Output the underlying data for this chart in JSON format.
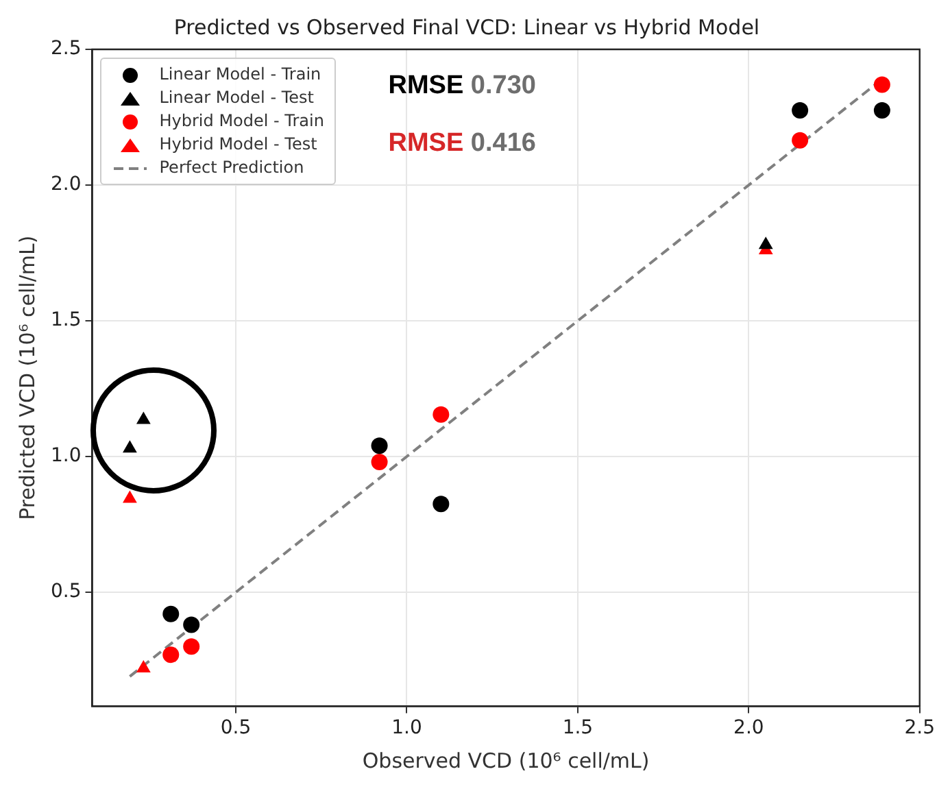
{
  "chart_data": {
    "type": "scatter",
    "title": "Predicted vs Observed Final VCD: Linear vs Hybrid Model",
    "xlabel": "Observed VCD (10⁶ cell/mL)",
    "ylabel": "Predicted VCD (10⁶ cell/mL)",
    "xlim": [
      0.08,
      2.5
    ],
    "ylim": [
      0.08,
      2.5
    ],
    "xticks": [
      0.5,
      {
        "value": 1,
        "label": "1.0"
      },
      1.5,
      {
        "value": 2,
        "label": "2.0"
      },
      2.5
    ],
    "yticks": [
      0.5,
      {
        "value": 1,
        "label": "1.0"
      },
      1.5,
      {
        "value": 2,
        "label": "2.0"
      },
      2.5
    ],
    "grid": true,
    "legend": "top left",
    "annotations": [
      "RMSE 0.730",
      "RMSE 0.416"
    ],
    "series": [
      {
        "name": "Linear Model - Train",
        "type": "scatter",
        "marker": "circle",
        "color": "#000000",
        "x": [
          0.31,
          0.37,
          0.92,
          1.1,
          2.15,
          2.39
        ],
        "values": [
          0.42,
          0.38,
          1.04,
          0.825,
          2.275,
          2.275
        ]
      },
      {
        "name": "Linear Model - Test",
        "type": "scatter",
        "marker": "triangle",
        "color": "#000000",
        "x": [
          0.19,
          0.23,
          2.05
        ],
        "values": [
          1.03,
          1.135,
          1.78
        ]
      },
      {
        "name": "Hybrid Model - Train",
        "type": "scatter",
        "marker": "circle",
        "color": "#ff0000",
        "x": [
          0.31,
          0.37,
          0.92,
          1.1,
          2.15,
          2.39
        ],
        "values": [
          0.27,
          0.3,
          0.98,
          1.155,
          2.165,
          2.37
        ]
      },
      {
        "name": "Hybrid Model - Test",
        "type": "scatter",
        "marker": "triangle",
        "color": "#ff0000",
        "x": [
          0.19,
          0.23,
          2.05
        ],
        "values": [
          0.845,
          0.22,
          1.76
        ]
      },
      {
        "name": "Perfect Prediction",
        "type": "line",
        "marker": "none",
        "line_style": "dashed",
        "color": "#808080",
        "x": [
          0.19,
          2.39
        ],
        "values": [
          0.19,
          2.39
        ]
      }
    ]
  }
}
